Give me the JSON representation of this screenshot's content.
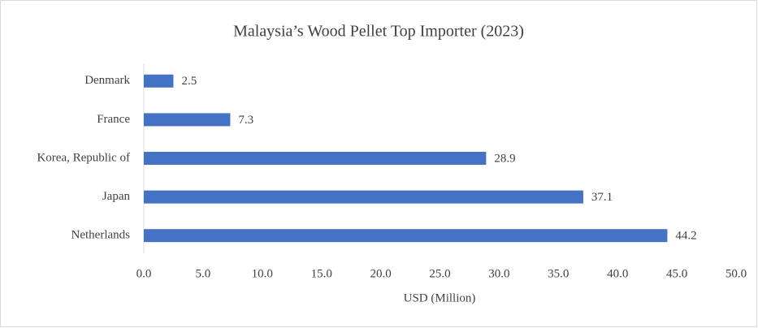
{
  "chart_data": {
    "type": "bar",
    "orientation": "horizontal",
    "title": "Malaysia’s Wood Pellet Top Importer (2023)",
    "x_label": "USD (Million)",
    "categories": [
      "Denmark",
      "France",
      "Korea, Republic of",
      "Japan",
      "Netherlands"
    ],
    "values": [
      2.5,
      7.3,
      28.9,
      37.1,
      44.2
    ],
    "color": "#4472c4",
    "xlim": [
      0,
      50
    ],
    "xticks": [
      {
        "value": 0,
        "label": "0.0"
      },
      {
        "value": 5,
        "label": "5.0"
      },
      {
        "value": 10,
        "label": "10.0"
      },
      {
        "value": 15,
        "label": "15.0"
      },
      {
        "value": 20,
        "label": "20.0"
      },
      {
        "value": 25,
        "label": "25.0"
      },
      {
        "value": 30,
        "label": "30.0"
      },
      {
        "value": 35,
        "label": "35.0"
      },
      {
        "value": 40,
        "label": "40.0"
      },
      {
        "value": 45,
        "label": "45.0"
      },
      {
        "value": 50,
        "label": "50.0"
      }
    ],
    "grid": false
  }
}
